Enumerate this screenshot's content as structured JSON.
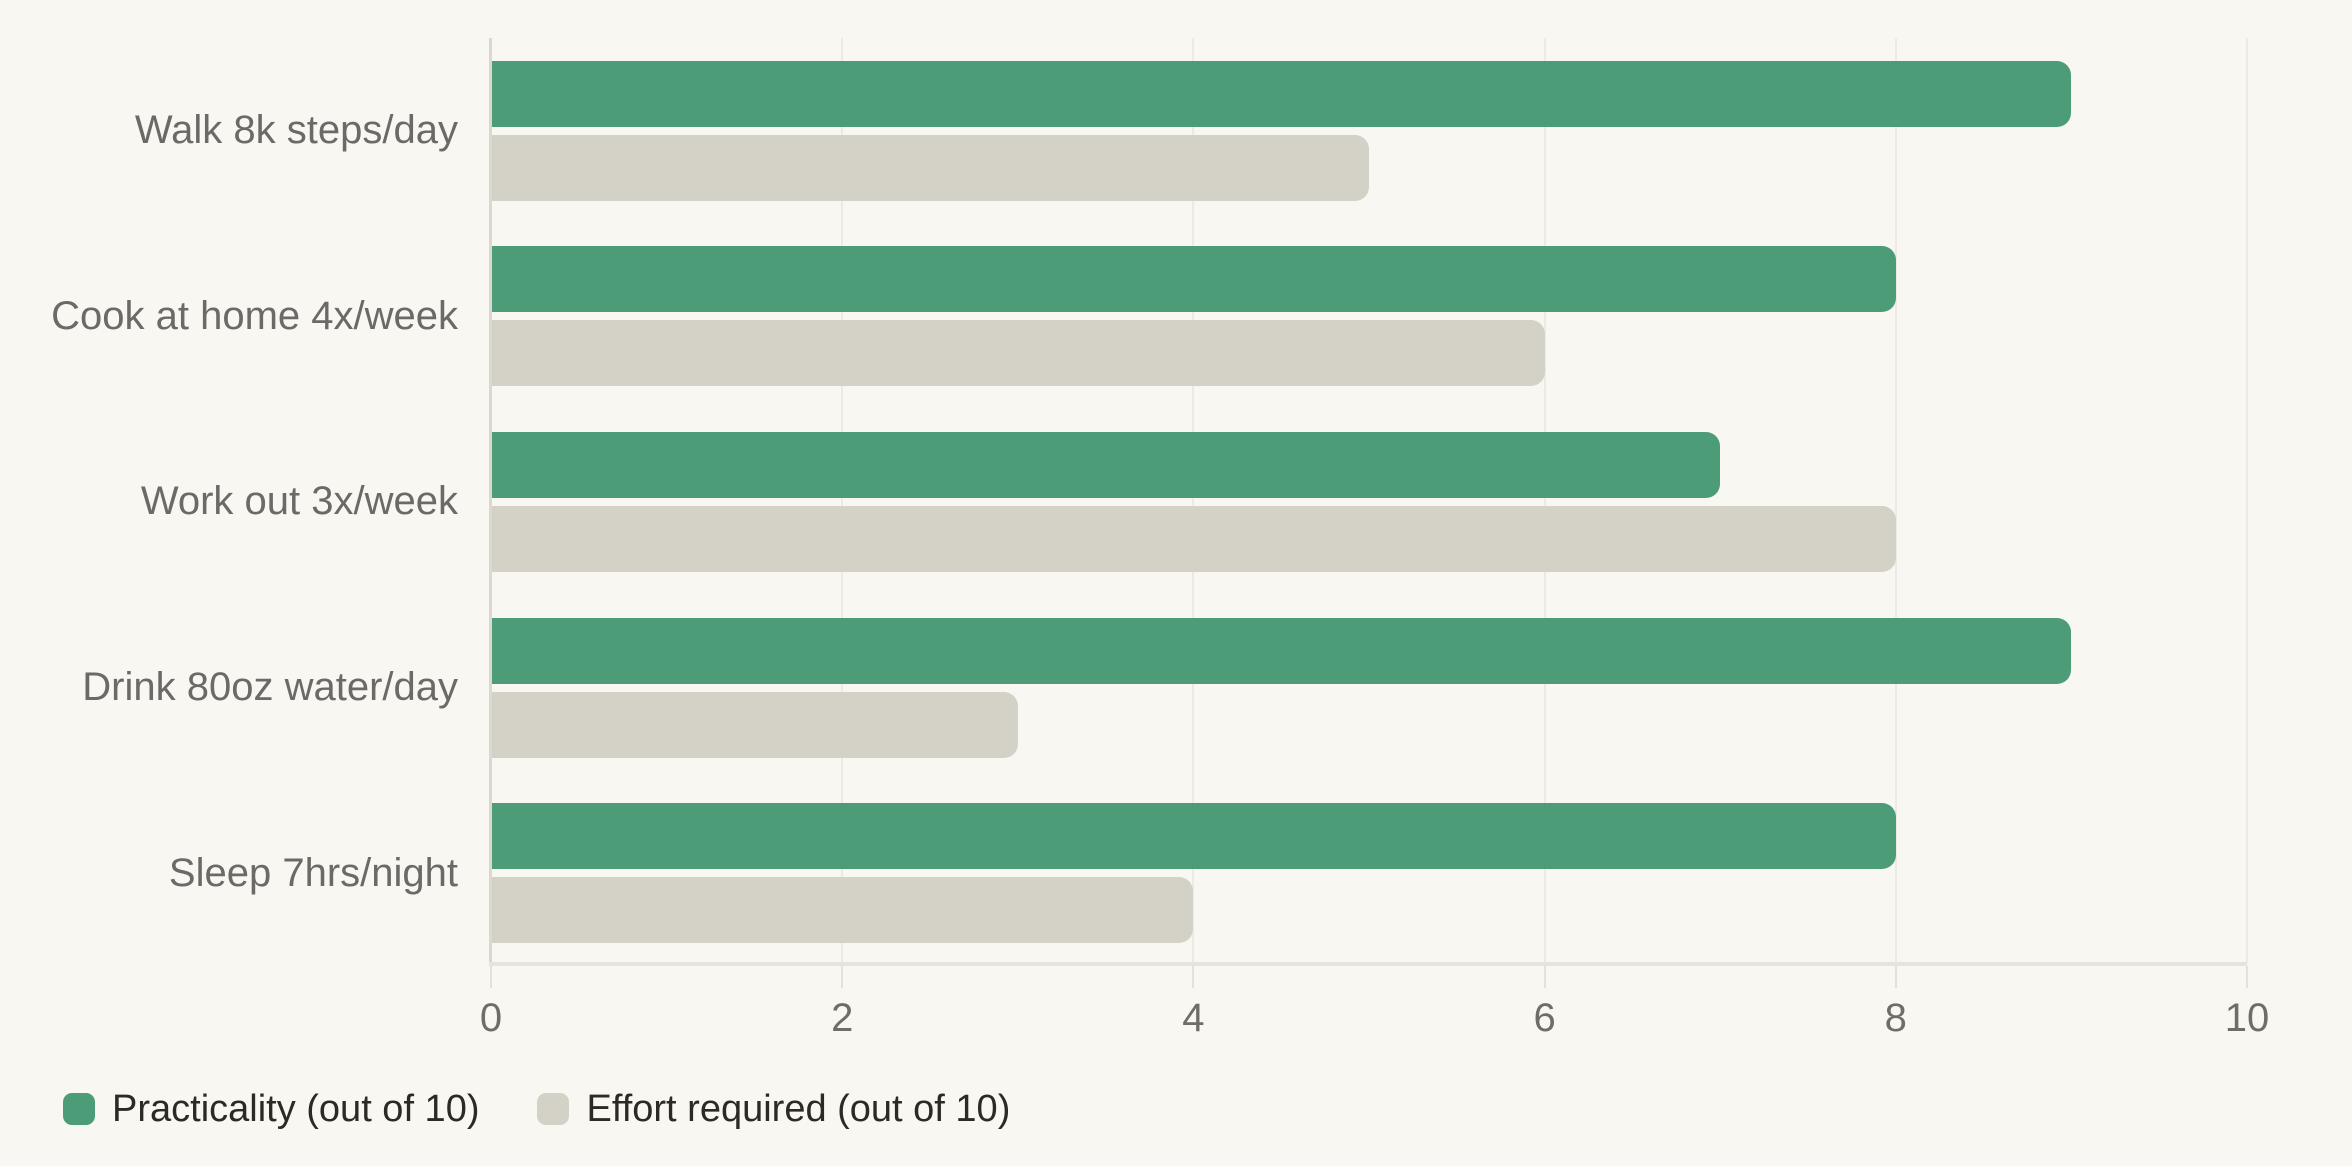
{
  "chart_data": {
    "type": "bar",
    "orientation": "horizontal",
    "title": "",
    "xlabel": "",
    "ylabel": "",
    "categories": [
      "Walk 8k steps/day",
      "Cook at home 4x/week",
      "Work out 3x/week",
      "Drink 80oz water/day",
      "Sleep 7hrs/night"
    ],
    "series": [
      {
        "name": "Practicality (out of 10)",
        "key": "practicality",
        "color": "#4C9C78",
        "values": [
          9,
          8,
          7,
          9,
          8
        ]
      },
      {
        "name": "Effort required (out of 10)",
        "key": "effort-required",
        "color": "#D4D1C7",
        "values": [
          5,
          6,
          8,
          3,
          4
        ]
      }
    ],
    "xlim": [
      0,
      10
    ],
    "x_ticks": [
      0,
      2,
      4,
      6,
      8,
      10
    ],
    "grid": "vertical-gridlines-on",
    "legend_position": "bottom-left"
  },
  "colors": {
    "background": "#F8F7F2",
    "axis_line": "#DBD9CF",
    "baseline": "#E7E5DB",
    "gridline": "#ECEAE2",
    "tickmark": "#E3E1D8",
    "category_label": "#6B6A66",
    "tick_label": "#6E6D68",
    "legend_text": "#2B2A25"
  }
}
